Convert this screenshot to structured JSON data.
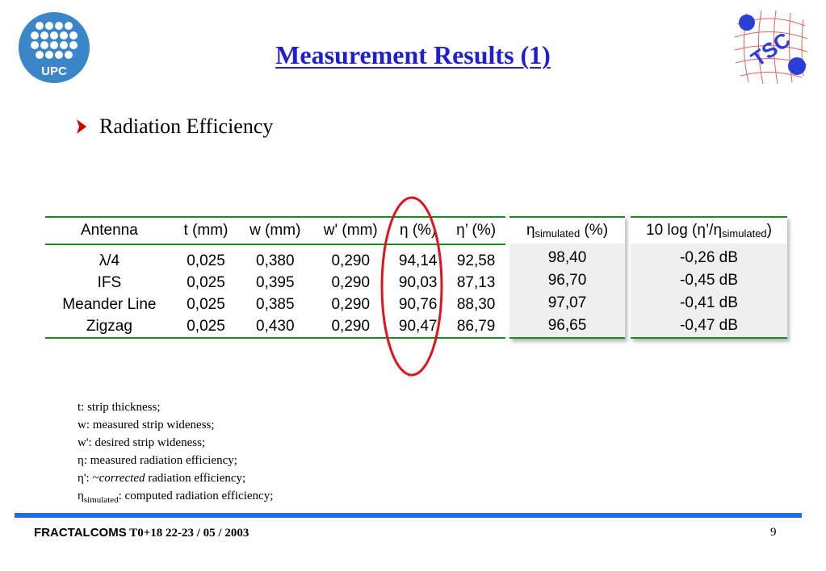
{
  "header": {
    "title": "Measurement Results (1)",
    "left_logo_text": "UPC",
    "right_logo_text": "TSC"
  },
  "bullet": {
    "text": "Radiation Efficiency",
    "icon": "chevron-right-icon",
    "color": "#d40000"
  },
  "table": {
    "columns": [
      "Antenna",
      "t (mm)",
      "w (mm)",
      "w' (mm)",
      "η (%)",
      "η’ (%)"
    ],
    "rows": [
      [
        "λ/4",
        "0,025",
        "0,380",
        "0,290",
        "94,14",
        "92,58"
      ],
      [
        "IFS",
        "0,025",
        "0,395",
        "0,290",
        "90,03",
        "87,13"
      ],
      [
        "Meander Line",
        "0,025",
        "0,385",
        "0,290",
        "90,76",
        "88,30"
      ],
      [
        "Zigzag",
        "0,025",
        "0,430",
        "0,290",
        "90,47",
        "86,79"
      ]
    ]
  },
  "simulated": {
    "header_eta": "η",
    "header_sub": "simulated",
    "header_unit": " (%)",
    "values": [
      "98,40",
      "96,70",
      "97,07",
      "96,65"
    ]
  },
  "log_ratio": {
    "header_prefix": "10 log (η’/η",
    "header_sub": "simulated",
    "header_suffix": ")",
    "values": [
      "-0,26 dB",
      "-0,45 dB",
      "-0,41 dB",
      "-0,47 dB"
    ]
  },
  "notes": {
    "line1": "t: strip thickness;",
    "line2": "w: measured strip wideness;",
    "line3": "w': desired strip wideness;",
    "line4": "η: measured radiation efficiency;",
    "line5_prefix": "η': ~",
    "line5_italic": "corrected",
    "line5_suffix": " radiation efficiency;",
    "line6_eta": "η",
    "line6_sub": "simulated",
    "line6_suffix": ": computed radiation efficiency;"
  },
  "footer": {
    "brand": "FRACTALCOMS",
    "info": " T0+18 22-23 / 05 / 2003",
    "page": "9"
  },
  "colors": {
    "title": "#1f1fcf",
    "rule": "#1a8a1a",
    "highlight_oval": "#e0141e",
    "footer_bar": "#1f6fe0",
    "logo_blue": "#1f5fa8"
  }
}
